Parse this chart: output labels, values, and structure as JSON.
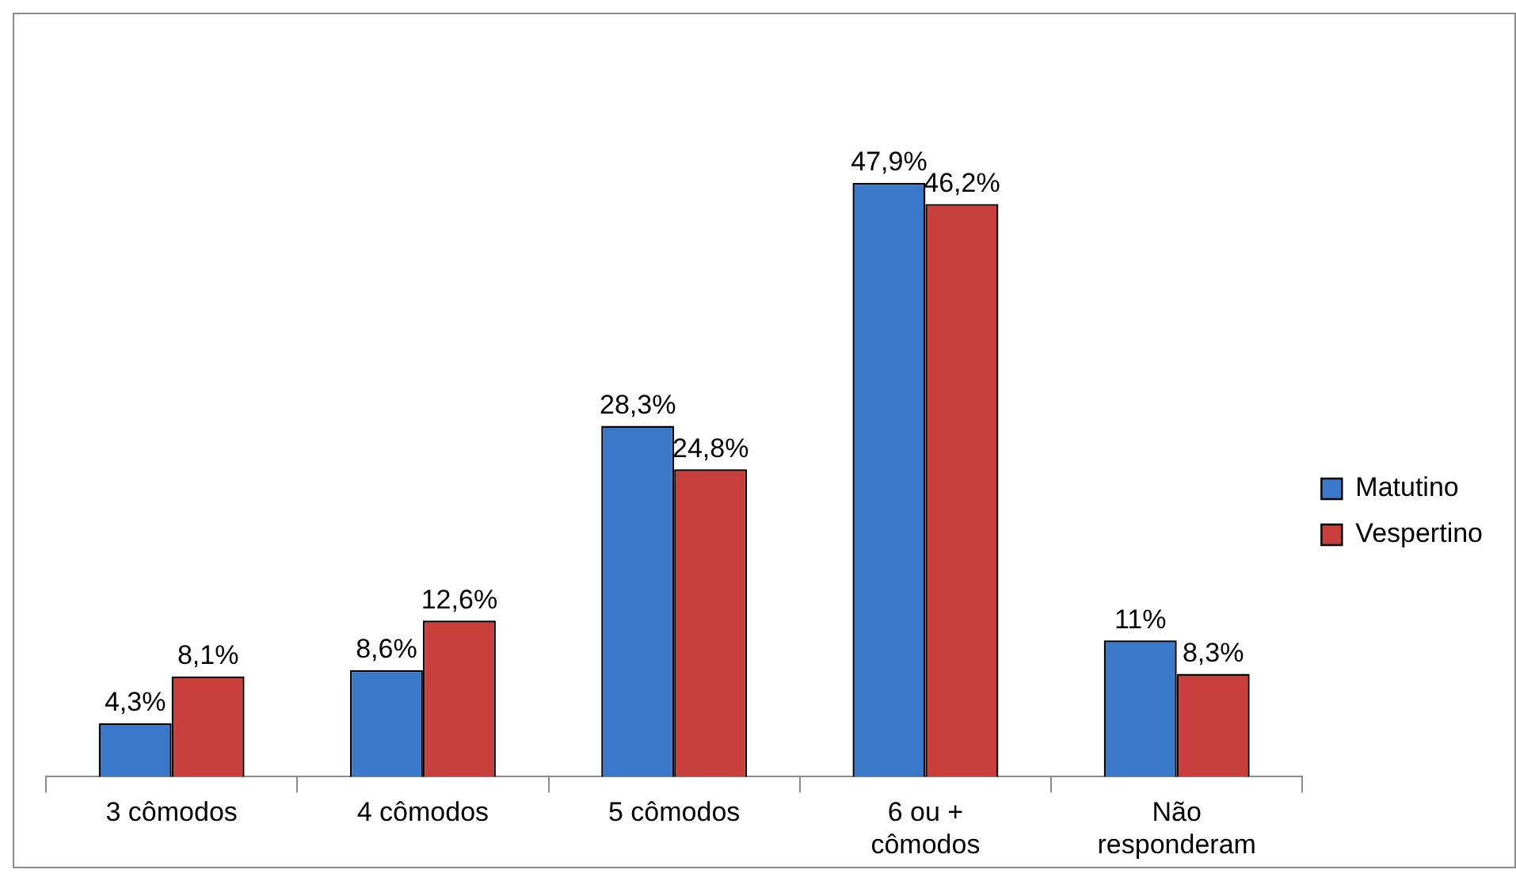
{
  "chart_data": {
    "type": "bar",
    "categories": [
      "3 cômodos",
      "4 cômodos",
      "5 cômodos",
      "6 ou + cômodos",
      "Não responderam"
    ],
    "series": [
      {
        "name": "Matutino",
        "color": "#3a78c9",
        "values": [
          4.3,
          8.6,
          28.3,
          47.9,
          11
        ],
        "value_labels": [
          "4,3%",
          "8,6%",
          "28,3%",
          "47,9%",
          "11%"
        ]
      },
      {
        "name": "Vespertino",
        "color": "#c93f3b",
        "values": [
          8.1,
          12.6,
          24.8,
          46.2,
          8.3
        ],
        "value_labels": [
          "8,1%",
          "12,6%",
          "24,8%",
          "46,2%",
          "8,3%"
        ]
      }
    ],
    "legend": "right",
    "grid": false,
    "tick_labels": "x"
  }
}
